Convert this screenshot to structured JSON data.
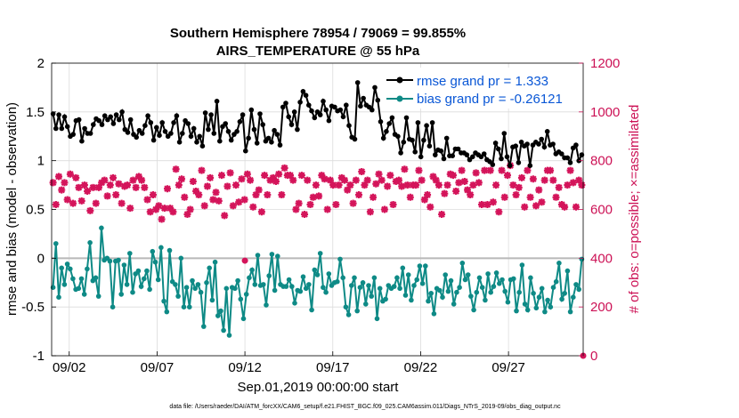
{
  "chart_data": {
    "type": "line",
    "title": "Southern Hemisphere 78954 / 79069 = 99.855%",
    "subtitle": "AIRS_TEMPERATURE @ 55 hPa",
    "xlabel": "Sep.01,2019 00:00:00 start",
    "ylabel": "rmse and bias (model - observation)",
    "y2label": "# of obs: o=possible; ×=assimilated",
    "footnote": "data file: /Users/raeder/DAI/ATM_forcXX/CAM6_setup/f.e21.FHIST_BGC.f09_025.CAM6assim.011/Diags_NTrS_2019-09/obs_diag_output.nc",
    "x_range": [
      1,
      31.25
    ],
    "ylim": [
      -1,
      2
    ],
    "y2lim": [
      0,
      1200
    ],
    "x_ticks": [
      {
        "value": 2,
        "label": "09/02"
      },
      {
        "value": 7,
        "label": "09/07"
      },
      {
        "value": 12,
        "label": "09/12"
      },
      {
        "value": 17,
        "label": "09/17"
      },
      {
        "value": 22,
        "label": "09/22"
      },
      {
        "value": 27,
        "label": "09/27"
      }
    ],
    "y_ticks": [
      {
        "value": 2,
        "label": "2"
      },
      {
        "value": 1.5,
        "label": "1.5"
      },
      {
        "value": 1,
        "label": "1"
      },
      {
        "value": 0.5,
        "label": "0.5"
      },
      {
        "value": 0,
        "label": "0"
      },
      {
        "value": -0.5,
        "label": "-0.5"
      },
      {
        "value": -1,
        "label": "-1"
      }
    ],
    "y2_ticks": [
      {
        "value": 1200,
        "label": "1200"
      },
      {
        "value": 1000,
        "label": "1000"
      },
      {
        "value": 800,
        "label": "800"
      },
      {
        "value": 600,
        "label": "600"
      },
      {
        "value": 400,
        "label": "400"
      },
      {
        "value": 200,
        "label": "200"
      },
      {
        "value": 0,
        "label": "0"
      }
    ],
    "legend_position": "top-right",
    "series": [
      {
        "name": "rmse grand pr = 1.333",
        "axis": "left",
        "color": "#000000",
        "marker": "dot",
        "values": [
          1.48,
          1.33,
          1.47,
          1.33,
          1.45,
          1.35,
          1.25,
          1.27,
          1.41,
          1.42,
          1.2,
          1.33,
          1.28,
          1.28,
          1.37,
          1.43,
          1.41,
          1.37,
          1.46,
          1.42,
          1.45,
          1.38,
          1.47,
          1.42,
          1.5,
          1.32,
          1.29,
          1.42,
          1.27,
          1.24,
          1.31,
          1.28,
          1.36,
          1.46,
          1.39,
          1.21,
          1.34,
          1.26,
          1.39,
          1.3,
          1.25,
          1.28,
          1.39,
          1.46,
          1.19,
          1.28,
          1.41,
          1.38,
          1.25,
          1.33,
          1.19,
          1.25,
          1.15,
          1.49,
          1.32,
          1.47,
          1.28,
          1.61,
          1.2,
          1.35,
          1.38,
          1.3,
          1.21,
          1.27,
          1.3,
          1.4,
          1.47,
          1.1,
          1.23,
          1.52,
          1.32,
          1.18,
          1.48,
          1.37,
          1.2,
          1.23,
          1.19,
          1.31,
          1.27,
          1.16,
          1.55,
          1.59,
          1.45,
          1.37,
          1.5,
          1.32,
          1.6,
          1.71,
          1.67,
          1.57,
          1.51,
          1.44,
          1.5,
          1.47,
          1.61,
          1.52,
          1.41,
          1.56,
          1.55,
          1.51,
          1.52,
          1.45,
          1.57,
          1.36,
          1.24,
          1.22,
          1.8,
          1.56,
          1.64,
          1.57,
          1.55,
          1.52,
          1.75,
          1.62,
          1.4,
          1.23,
          1.3,
          1.38,
          1.44,
          1.27,
          1.25,
          1.08,
          1.19,
          1.44,
          1.22,
          1.21,
          1.09,
          1.39,
          1.04,
          1.21,
          1.36,
          1.15,
          1.39,
          1.06,
          1.11,
          1.1,
          1.02,
          1.23,
          1.05,
          1.05,
          1.12,
          1.12,
          1.08,
          1.08,
          1.06,
          1.01,
          1.04,
          1.08,
          1.06,
          1.04,
          1.07,
          1.01,
          0.99,
          0.96,
          1.18,
          1.12,
          1.02,
          1.28,
          1.04,
          0.95,
          1.14,
          1.15,
          0.98,
          1.19,
          1.15,
          1.17,
          0.95,
          1.16,
          1.19,
          1.17,
          1.22,
          1.14,
          1.3,
          1.16,
          1.17,
          1.07,
          1.09,
          1.07,
          1.03,
          1.03,
          0.98,
          1.13,
          1.16,
          1.0,
          1.06
        ],
        "values_note": "approximate"
      },
      {
        "name": "bias grand pr = -0.26121",
        "axis": "left",
        "color": "#0e8a86",
        "marker": "dot",
        "values": [
          -0.3,
          0.15,
          -0.4,
          -0.1,
          -0.27,
          -0.06,
          -0.11,
          -0.21,
          -0.32,
          -0.31,
          -0.21,
          -0.37,
          -0.11,
          0.16,
          -0.23,
          -0.2,
          -0.39,
          0.31,
          -0.02,
          0.0,
          -0.03,
          -0.5,
          -0.03,
          -0.02,
          -0.37,
          -0.07,
          -0.27,
          0.05,
          -0.35,
          -0.16,
          -0.13,
          -0.29,
          -0.21,
          -0.13,
          -0.32,
          0.07,
          -0.04,
          -0.22,
          0.11,
          -0.44,
          -0.55,
          0.08,
          -0.24,
          -0.27,
          -0.39,
          0.0,
          -0.5,
          -0.3,
          -0.5,
          -0.23,
          -0.31,
          -0.27,
          -0.35,
          -0.7,
          -0.25,
          -0.1,
          -0.43,
          -0.04,
          -0.59,
          -0.54,
          -0.74,
          -0.31,
          -0.79,
          -0.3,
          -0.31,
          -0.23,
          -0.42,
          -0.62,
          -0.37,
          -0.2,
          -0.12,
          -0.27,
          0.03,
          -0.28,
          -0.27,
          -0.48,
          -0.18,
          0.04,
          -0.33,
          0.02,
          -0.27,
          -0.29,
          -0.29,
          -0.22,
          -0.29,
          -0.46,
          -0.33,
          -0.34,
          -0.19,
          -0.31,
          -0.27,
          -0.53,
          -0.12,
          -0.17,
          0.05,
          -0.3,
          -0.35,
          -0.16,
          -0.28,
          -0.25,
          -0.24,
          -0.01,
          -0.2,
          -0.5,
          -0.58,
          -0.28,
          -0.2,
          -0.54,
          -0.3,
          -0.25,
          -0.47,
          -0.28,
          -0.39,
          -0.2,
          -0.62,
          -0.31,
          -0.44,
          -0.42,
          -0.28,
          -0.31,
          -0.29,
          -0.2,
          -0.31,
          -0.1,
          -0.38,
          -0.17,
          -0.43,
          -0.28,
          -0.22,
          -0.08,
          -0.26,
          -0.08,
          -0.44,
          -0.36,
          -0.57,
          -0.31,
          -0.33,
          -0.4,
          -0.17,
          -0.34,
          -0.23,
          -0.47,
          -0.35,
          -0.3,
          -0.05,
          -0.22,
          -0.17,
          -0.39,
          -0.53,
          -0.35,
          -0.2,
          -0.3,
          -0.43,
          -0.16,
          -0.35,
          -0.29,
          -0.15,
          -0.26,
          -0.22,
          -0.34,
          -0.45,
          -0.22,
          -0.21,
          -0.54,
          -0.35,
          -0.07,
          -0.47,
          -0.53,
          -0.2,
          -0.36,
          -0.51,
          -0.4,
          -0.31,
          -0.55,
          -0.43,
          -0.5,
          -0.3,
          -0.24,
          -0.05,
          -0.42,
          -0.36,
          -0.13,
          -0.55,
          -0.4,
          -0.27,
          -0.32,
          -0.01
        ],
        "values_note": "approximate"
      }
    ],
    "obs_assimilated_series": {
      "name": "# assimilated",
      "axis": "right",
      "color": "#d4145a",
      "marker": "asterisk",
      "values": [
        710,
        620,
        735,
        680,
        710,
        640,
        745,
        625,
        730,
        690,
        635,
        700,
        675,
        595,
        690,
        625,
        690,
        710,
        720,
        655,
        700,
        730,
        660,
        705,
        625,
        695,
        700,
        605,
        720,
        690,
        735,
        720,
        690,
        640,
        590,
        660,
        600,
        615,
        560,
        605,
        685,
        605,
        590,
        765,
        700,
        725,
        650,
        580,
        600,
        715,
        675,
        660,
        760,
        615,
        695,
        730,
        640,
        670,
        635,
        740,
        575,
        695,
        750,
        615,
        700,
        630,
        725,
        640,
        745,
        720,
        610,
        660,
        680,
        590,
        740,
        660,
        720,
        730,
        715,
        745,
        660,
        770,
        740,
        740,
        720,
        600,
        625,
        740,
        580,
        720,
        620,
        650,
        700,
        655,
        740,
        725,
        600,
        720,
        700,
        620,
        700,
        730,
        720,
        680,
        700,
        625,
        720,
        660,
        755,
        700,
        720,
        590,
        650,
        705,
        745,
        720,
        600,
        695,
        740,
        620,
        715,
        720,
        695,
        765,
        700,
        650,
        700,
        700,
        760,
        720,
        640,
        660,
        610,
        735,
        720,
        700,
        580,
        665,
        700,
        745,
        740,
        675,
        710,
        760,
        715,
        680,
        660,
        700,
        750,
        710,
        620,
        760,
        620,
        760,
        630,
        700,
        590,
        760,
        650,
        740,
        780,
        700,
        660,
        690,
        730,
        610,
        760,
        650,
        725,
        615,
        680,
        630,
        720,
        760,
        760,
        720,
        650,
        690,
        620,
        610,
        700,
        760,
        710,
        610,
        720,
        700
      ],
      "values_note": "approximate; scattered crosses on right axis"
    },
    "obs_possible_series": {
      "name": "# possible",
      "axis": "right",
      "color": "#d4145a",
      "marker": "circle",
      "values": [
        390,
        0
      ],
      "x": [
        12,
        31.25
      ],
      "values_note": "approximate"
    }
  }
}
